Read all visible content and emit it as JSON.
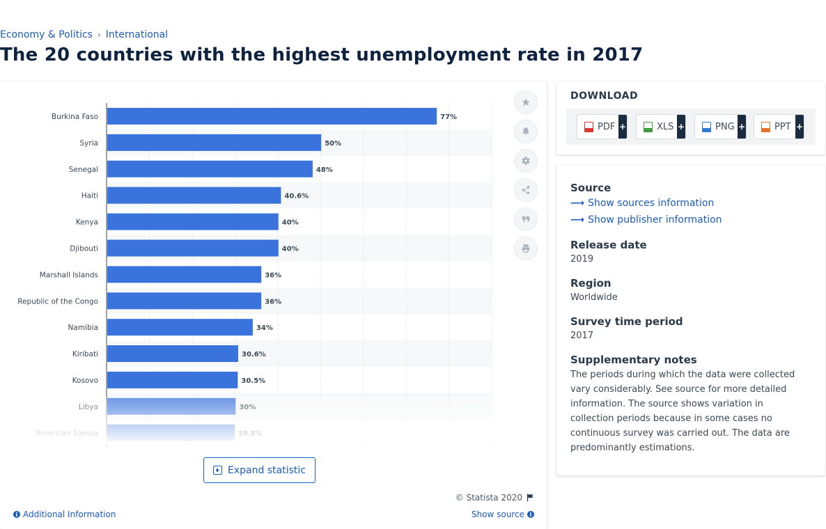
{
  "breadcrumb": {
    "items": [
      "Economy & Politics",
      "International"
    ]
  },
  "page_title": "The 20 countries with the highest unemployment rate in 2017",
  "chart_data": {
    "type": "bar",
    "orientation": "horizontal",
    "categories": [
      "Burkina Faso",
      "Syria",
      "Senegal",
      "Haiti",
      "Kenya",
      "Djibouti",
      "Marshall Islands",
      "Republic of the Congo",
      "Namibia",
      "Kiribati",
      "Kosovo",
      "Libya",
      "American Samoa"
    ],
    "values": [
      77,
      50,
      48,
      40.6,
      40,
      40,
      36,
      36,
      34,
      30.6,
      30.5,
      30,
      29.8
    ],
    "value_labels": [
      "77%",
      "50%",
      "48%",
      "40.6%",
      "40%",
      "40%",
      "36%",
      "36%",
      "34%",
      "30.6%",
      "30.5%",
      "30%",
      "29.8%"
    ],
    "xlim": [
      0,
      90
    ],
    "grid": true,
    "bar_color": "#3a73dc"
  },
  "toolbar": {
    "icons": [
      "star-icon",
      "bell-icon",
      "gear-icon",
      "share-icon",
      "quote-icon",
      "print-icon"
    ]
  },
  "expand_label": "Expand statistic",
  "footer": {
    "copyright": "© Statista 2020",
    "additional_info": "Additional Information",
    "show_source": "Show source"
  },
  "download": {
    "title": "DOWNLOAD",
    "buttons": [
      {
        "label": "PDF",
        "color": "#d9382c"
      },
      {
        "label": "XLS",
        "color": "#3f9b3a"
      },
      {
        "label": "PNG",
        "color": "#2f7bd1"
      },
      {
        "label": "PPT",
        "color": "#e3732a"
      }
    ],
    "plus": "+"
  },
  "meta": {
    "source_heading": "Source",
    "show_sources": "Show sources information",
    "show_publisher": "Show publisher information",
    "release_heading": "Release date",
    "release_value": "2019",
    "region_heading": "Region",
    "region_value": "Worldwide",
    "survey_heading": "Survey time period",
    "survey_value": "2017",
    "notes_heading": "Supplementary notes",
    "notes_text": "The periods during which the data were collected vary considerably. See source for more detailed information. The source shows variation in collection periods because in some cases no continuous survey was carried out. The data are predominantly estimations."
  }
}
